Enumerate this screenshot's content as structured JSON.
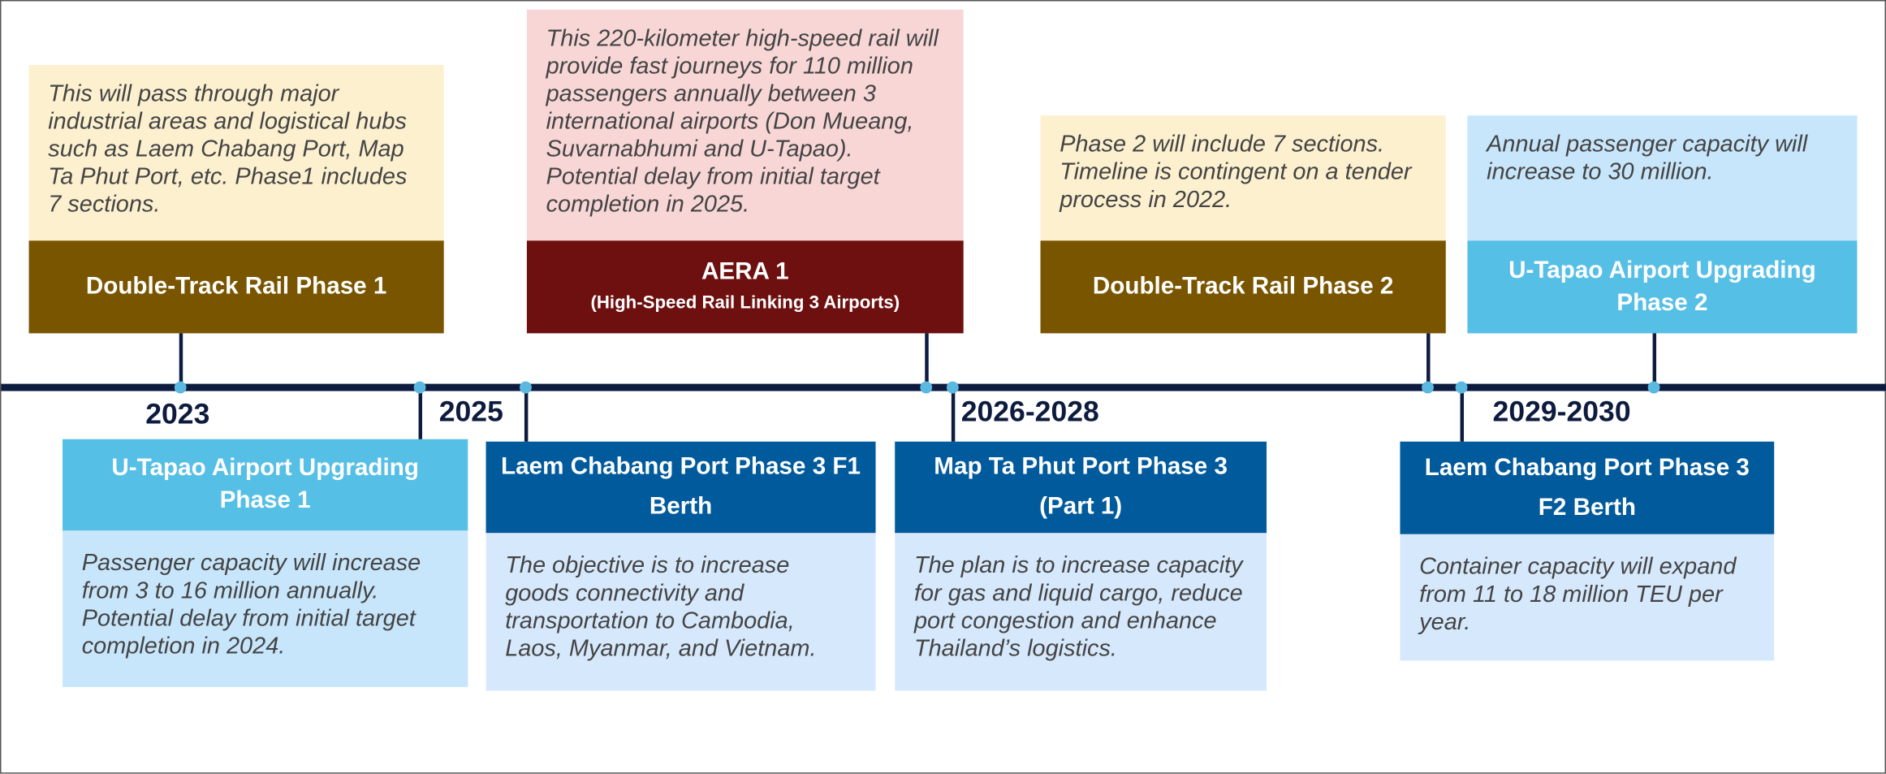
{
  "years": [
    "2023",
    "2025",
    "2026-2028",
    "2029-2030"
  ],
  "top": [
    {
      "title": "Double-Track Rail Phase 1",
      "description": "This will pass through major industrial areas and logistical hubs such as Laem Chabang Port, Map Ta Phut Port, etc. Phase1 includes 7 sections."
    },
    {
      "title": "AERA 1",
      "subtitle": "(High-Speed Rail Linking 3 Airports)",
      "description": "This 220-kilometer high-speed rail will provide fast journeys for 110 million passengers annually between 3 international airports (Don Mueang, Suvarnabhumi and U-Tapao). Potential delay from initial target completion in 2025."
    },
    {
      "title": "Double-Track Rail Phase 2",
      "description": "Phase 2 will include 7 sections. Timeline is contingent on a tender process in 2022."
    },
    {
      "title": "U-Tapao Airport Upgrading Phase 2",
      "description": "Annual passenger capacity will increase to 30 million."
    }
  ],
  "bottom": [
    {
      "title": "U-Tapao Airport Upgrading Phase 1",
      "description": "Passenger capacity will increase from 3 to 16 million annually. Potential delay from initial target completion in 2024."
    },
    {
      "title": "Laem Chabang Port Phase 3 F1 Berth",
      "description": "The objective is to increase goods connectivity and transportation to Cambodia, Laos, Myanmar, and Vietnam."
    },
    {
      "title": "Map Ta Phut Port Phase 3 (Part 1)",
      "description": "The plan is to increase capacity for gas and liquid cargo, reduce port congestion and enhance Thailand’s logistics."
    },
    {
      "title": "Laem Chabang Port Phase 3 F2 Berth",
      "description": "Container capacity will expand from 11 to 18 million TEU per year."
    }
  ]
}
